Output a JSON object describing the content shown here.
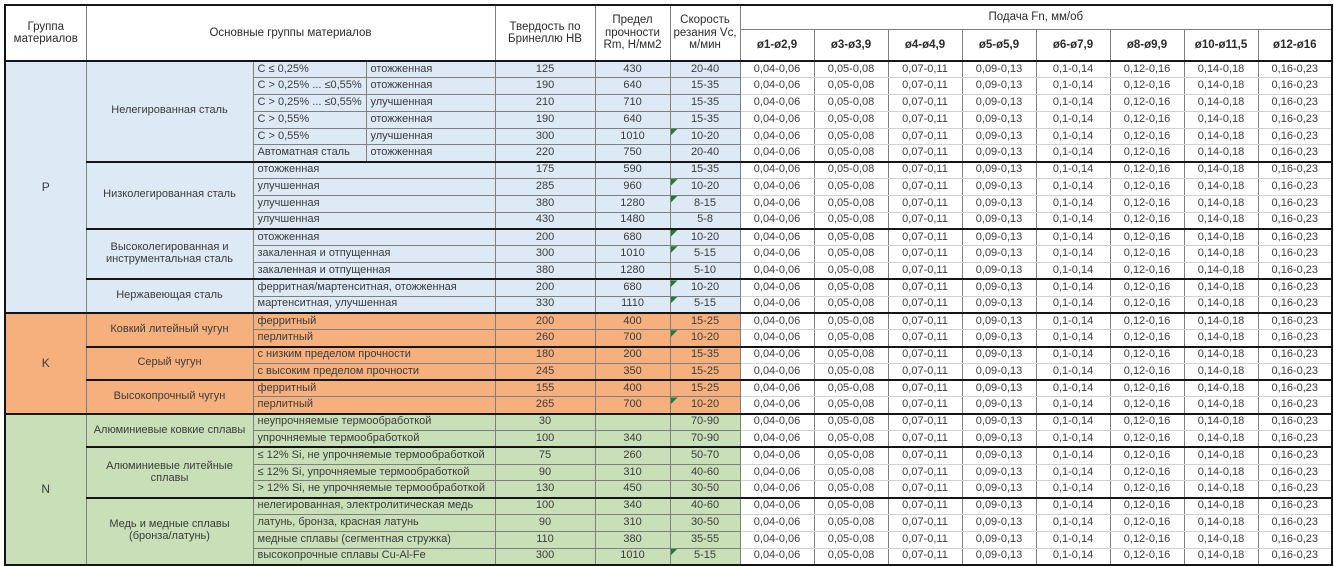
{
  "table": {
    "header": {
      "col_group": "Группа материалов",
      "col_main": "Основные группы материалов",
      "col_hb": "Твердость по Бринеллю HB",
      "col_rm": "Предел прочности Rm, Н/мм2",
      "col_vc": "Скорость резания Vc, м/мин",
      "feed_title": "Подача Fn, мм/об",
      "feed_cols": [
        "ø1-ø2,9",
        "ø3-ø3,9",
        "ø4-ø4,9",
        "ø5-ø5,9",
        "ø6-ø7,9",
        "ø8-ø9,9",
        "ø10-ø11,5",
        "ø12-ø16"
      ]
    },
    "feed_values": [
      "0,04-0,06",
      "0,05-0,08",
      "0,07-0,11",
      "0,09-0,13",
      "0,1-0,14",
      "0,12-0,16",
      "0,14-0,18",
      "0,16-0,23"
    ],
    "flag_color": "#1e7b34",
    "groups": [
      {
        "code": "P",
        "color": "#dde9f5",
        "families": [
          {
            "name": "Нелегированная сталь",
            "rows": [
              {
                "detail": "C ≤ 0,25%",
                "state": "отожженная",
                "hb": "125",
                "rm": "430",
                "vc": "20-40",
                "flag": false
              },
              {
                "detail": "C > 0,25% ... ≤0,55%",
                "state": "отожженная",
                "hb": "190",
                "rm": "640",
                "vc": "15-35",
                "flag": false
              },
              {
                "detail": "C > 0,25% ... ≤0,55%",
                "state": "улучшенная",
                "hb": "210",
                "rm": "710",
                "vc": "15-35",
                "flag": false
              },
              {
                "detail": "C > 0,55%",
                "state": "отожженная",
                "hb": "190",
                "rm": "640",
                "vc": "15-35",
                "flag": false
              },
              {
                "detail": "C > 0,55%",
                "state": "улучшенная",
                "hb": "300",
                "rm": "1010",
                "vc": "10-20",
                "flag": true
              },
              {
                "detail": "Автоматная сталь",
                "state": "отожженная",
                "hb": "220",
                "rm": "750",
                "vc": "20-40",
                "flag": false
              }
            ]
          },
          {
            "name": "Низколегированная сталь",
            "rows": [
              {
                "detail": "отожженная",
                "hb": "175",
                "rm": "590",
                "vc": "15-35",
                "flag": false
              },
              {
                "detail": "улучшенная",
                "hb": "285",
                "rm": "960",
                "vc": "10-20",
                "flag": true
              },
              {
                "detail": "улучшенная",
                "hb": "380",
                "rm": "1280",
                "vc": "8-15",
                "flag": true
              },
              {
                "detail": "улучшенная",
                "hb": "430",
                "rm": "1480",
                "vc": "5-8",
                "flag": false
              }
            ]
          },
          {
            "name": "Высоколегированная и инструментальная сталь",
            "rows": [
              {
                "detail": "отожженная",
                "hb": "200",
                "rm": "680",
                "vc": "10-20",
                "flag": true
              },
              {
                "detail": "закаленная и отпущенная",
                "hb": "300",
                "rm": "1010",
                "vc": "5-15",
                "flag": true
              },
              {
                "detail": "закаленная и отпущенная",
                "hb": "380",
                "rm": "1280",
                "vc": "5-10",
                "flag": false
              }
            ]
          },
          {
            "name": "Нержавеющая сталь",
            "rows": [
              {
                "detail": "ферритная/мартенситная, отожженная",
                "hb": "200",
                "rm": "680",
                "vc": "10-20",
                "flag": true
              },
              {
                "detail": "мартенситная, улучшенная",
                "hb": "330",
                "rm": "1110",
                "vc": "5-15",
                "flag": true
              }
            ]
          }
        ]
      },
      {
        "code": "K",
        "color": "#f6b07e",
        "families": [
          {
            "name": "Ковкий литейный чугун",
            "rows": [
              {
                "detail": "ферритный",
                "hb": "200",
                "rm": "400",
                "vc": "15-25",
                "flag": false
              },
              {
                "detail": "перлитный",
                "hb": "260",
                "rm": "700",
                "vc": "10-20",
                "flag": true
              }
            ]
          },
          {
            "name": "Серый чугун",
            "rows": [
              {
                "detail": "с низким пределом прочности",
                "hb": "180",
                "rm": "200",
                "vc": "15-35",
                "flag": false
              },
              {
                "detail": "с высоким пределом прочности",
                "hb": "245",
                "rm": "350",
                "vc": "15-25",
                "flag": false
              }
            ]
          },
          {
            "name": "Высокопрочный чугун",
            "rows": [
              {
                "detail": "ферритный",
                "hb": "155",
                "rm": "400",
                "vc": "15-25",
                "flag": false
              },
              {
                "detail": "перлитный",
                "hb": "265",
                "rm": "700",
                "vc": "10-20",
                "flag": true
              }
            ]
          }
        ]
      },
      {
        "code": "N",
        "color": "#c9dfb8",
        "families": [
          {
            "name": "Алюминиевые ковкие сплавы",
            "rows": [
              {
                "detail": "неупрочняемые термообработкой",
                "hb": "30",
                "rm": "",
                "vc": "70-90",
                "flag": false
              },
              {
                "detail": "упрочняемые термообработкой",
                "hb": "100",
                "rm": "340",
                "vc": "70-90",
                "flag": false
              }
            ]
          },
          {
            "name": "Алюминиевые литейные сплавы",
            "rows": [
              {
                "detail": "≤ 12% Si, не упрочняемые термообработкой",
                "hb": "75",
                "rm": "260",
                "vc": "50-70",
                "flag": false
              },
              {
                "detail": "≤ 12% Si, упрочняемые термообработкой",
                "hb": "90",
                "rm": "310",
                "vc": "40-60",
                "flag": false
              },
              {
                "detail": "> 12% Si, не упрочняемые термообработкой",
                "hb": "130",
                "rm": "450",
                "vc": "30-50",
                "flag": false
              }
            ]
          },
          {
            "name": "Медь и медные сплавы (бронза/латунь)",
            "rows": [
              {
                "detail": "нелегированная, электролитическая медь",
                "hb": "100",
                "rm": "340",
                "vc": "40-60",
                "flag": false
              },
              {
                "detail": "латунь, бронза, красная латунь",
                "hb": "90",
                "rm": "310",
                "vc": "30-50",
                "flag": false
              },
              {
                "detail": "медные сплавы (сегментная стружка)",
                "hb": "110",
                "rm": "380",
                "vc": "35-55",
                "flag": false
              },
              {
                "detail": "высокопрочные сплавы Cu-Al-Fe",
                "hb": "300",
                "rm": "1010",
                "vc": "5-15",
                "flag": true
              }
            ]
          }
        ]
      }
    ]
  }
}
